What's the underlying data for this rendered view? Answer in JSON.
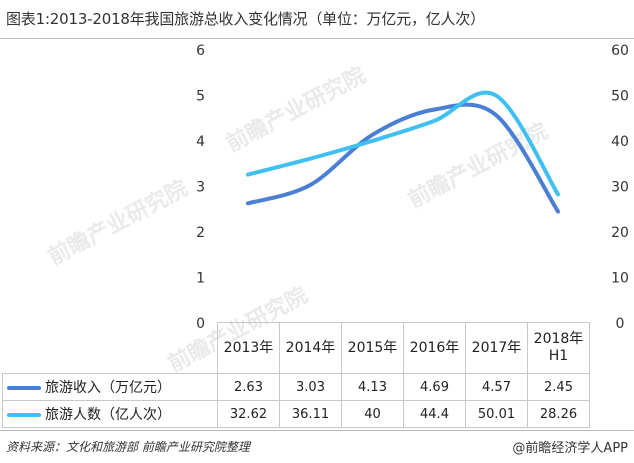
{
  "title": "图表1:2013-2018年我国旅游总收入变化情况（单位：万亿元，亿人次）",
  "chart_data": {
    "type": "line",
    "categories": [
      "2013年",
      "2014年",
      "2015年",
      "2016年",
      "2017年",
      "2018年 H1"
    ],
    "series": [
      {
        "name": "旅游收入（万亿元）",
        "values": [
          2.63,
          3.03,
          4.13,
          4.69,
          4.57,
          2.45
        ],
        "axis": "left",
        "color": "#4a7fd4"
      },
      {
        "name": "旅游人数（亿人次）",
        "values": [
          32.62,
          36.11,
          40,
          44.4,
          50.01,
          28.26
        ],
        "axis": "right",
        "color": "#3fc0f0"
      }
    ],
    "left_axis": {
      "ylim": [
        0,
        6
      ],
      "ticks": [
        "0",
        "1",
        "2",
        "3",
        "4",
        "5",
        "6"
      ]
    },
    "right_axis": {
      "ylim": [
        0,
        60
      ],
      "ticks": [
        "0",
        "10",
        "20",
        "30",
        "40",
        "50",
        "60"
      ]
    },
    "data_table": {
      "columns": [
        "2013年",
        "2014年",
        "2015年",
        "2016年",
        "2017年",
        "2018年 H1"
      ],
      "rows": [
        {
          "label": "旅游收入（万亿元）",
          "cells": [
            "2.63",
            "3.03",
            "4.13",
            "4.69",
            "4.57",
            "2.45"
          ]
        },
        {
          "label": "旅游人数（亿人次）",
          "cells": [
            "32.62",
            "36.11",
            "40",
            "44.4",
            "50.01",
            "28.26"
          ]
        }
      ]
    }
  },
  "watermark": "前瞻产业研究院",
  "source": "资料来源：文化和旅游部  前瞻产业研究院整理",
  "brand": "@前瞻经济学人APP"
}
